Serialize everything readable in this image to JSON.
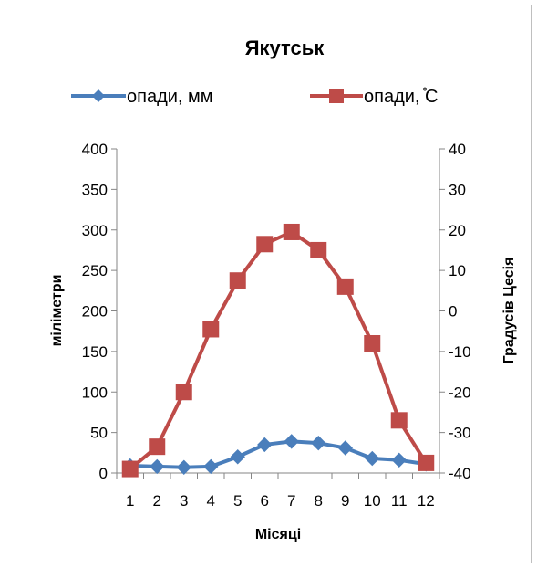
{
  "chart_data": {
    "type": "line",
    "title": "Якутськ",
    "xlabel": "Місяці",
    "ylabel": "міліметри",
    "y2label": "Градусів Цесія",
    "categories": [
      "1",
      "2",
      "3",
      "4",
      "5",
      "6",
      "7",
      "8",
      "9",
      "10",
      "11",
      "12"
    ],
    "ylim": [
      0,
      400
    ],
    "yticks": [
      "0",
      "50",
      "100",
      "150",
      "200",
      "250",
      "300",
      "350",
      "400"
    ],
    "y2lim": [
      -40,
      40
    ],
    "y2ticks": [
      "-40",
      "-30",
      "-20",
      "-10",
      "0",
      "10",
      "20",
      "30",
      "40"
    ],
    "legend_position": "top",
    "grid": false,
    "series": [
      {
        "name": "опади, мм",
        "axis": "left",
        "marker": "diamond",
        "color": "#4a7ebb",
        "values": [
          9,
          8,
          7,
          8,
          20,
          35,
          39,
          37,
          31,
          18,
          16,
          11
        ]
      },
      {
        "name": "опади, ̊С",
        "axis": "right",
        "marker": "square",
        "color": "#be4b48",
        "values": [
          -39,
          -33.5,
          -20,
          -4.5,
          7.5,
          16.5,
          19.5,
          15,
          6,
          -8,
          -27,
          -37.5
        ]
      }
    ]
  }
}
